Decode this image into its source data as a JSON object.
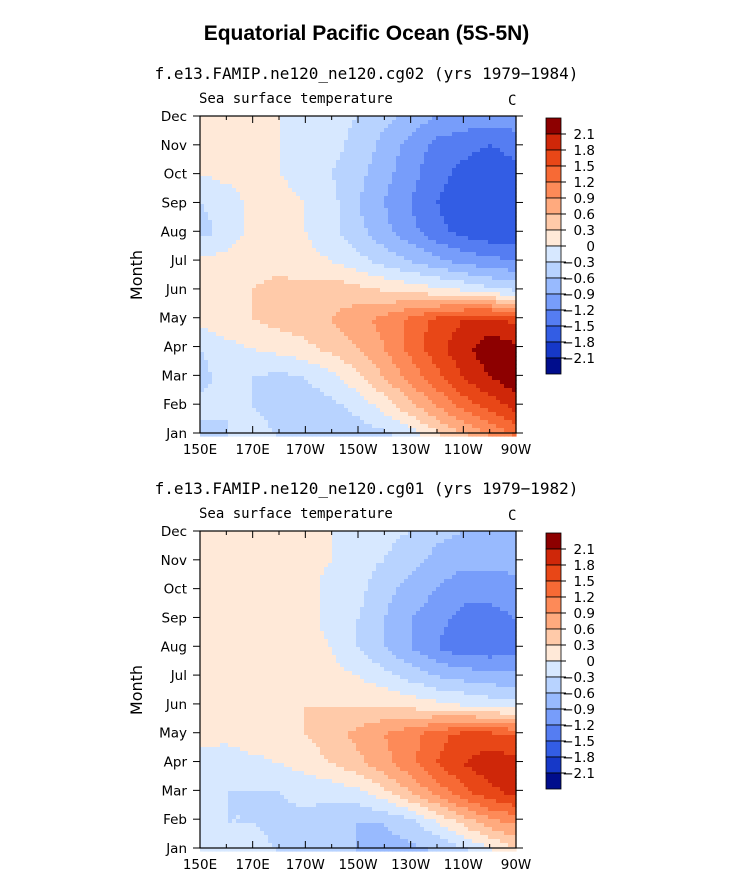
{
  "title": "Equatorial Pacific Ocean (5S-5N)",
  "chart_data": [
    {
      "type": "heatmap",
      "subtitle": "f.e13.FAMIP.ne120_ne120.cg02 (yrs 1979−1984)",
      "variable": "Sea surface temperature",
      "units": "C",
      "ylabel": "Month",
      "xticks": [
        "150E",
        "170E",
        "170W",
        "150W",
        "130W",
        "110W",
        "90W"
      ],
      "yticks": [
        "Jan",
        "Feb",
        "Mar",
        "Apr",
        "May",
        "Jun",
        "Jul",
        "Aug",
        "Sep",
        "Oct",
        "Nov",
        "Dec"
      ],
      "xlim_deg_east": [
        150,
        270
      ],
      "ylim_month": [
        1,
        12
      ],
      "colorbar_levels": [
        "2.1",
        "1.8",
        "1.5",
        "1.2",
        "0.9",
        "0.6",
        "0.3",
        "0",
        "−0.3",
        "−0.6",
        "−0.9",
        "−1.2",
        "−1.5",
        "−1.8",
        "−2.1"
      ],
      "grid_values": [
        [
          -0.4,
          -0.3,
          -0.2,
          -0.3,
          -0.4,
          -0.5,
          -0.5,
          -0.4,
          -0.2,
          0.2,
          0.5,
          0.9,
          1.2
        ],
        [
          -0.2,
          -0.3,
          -0.3,
          -0.4,
          -0.5,
          -0.4,
          -0.2,
          0.1,
          0.5,
          0.9,
          1.3,
          1.6,
          1.9
        ],
        [
          -0.4,
          -0.2,
          -0.3,
          -0.4,
          -0.3,
          -0.1,
          0.2,
          0.6,
          1.0,
          1.4,
          1.8,
          2.1,
          2.3
        ],
        [
          -0.3,
          -0.1,
          0.0,
          0.1,
          0.2,
          0.4,
          0.6,
          0.9,
          1.3,
          1.7,
          2.0,
          2.3,
          2.2
        ],
        [
          0.1,
          0.2,
          0.3,
          0.4,
          0.5,
          0.6,
          0.8,
          1.0,
          1.3,
          1.6,
          1.8,
          1.9,
          1.7
        ],
        [
          0.2,
          0.2,
          0.3,
          0.4,
          0.4,
          0.5,
          0.4,
          0.3,
          0.2,
          0.1,
          0.0,
          -0.2,
          -0.3
        ],
        [
          0.1,
          0.1,
          0.2,
          0.2,
          0.1,
          0.0,
          -0.2,
          -0.4,
          -0.6,
          -0.8,
          -1.0,
          -1.1,
          -1.2
        ],
        [
          -0.4,
          -0.2,
          0.1,
          0.1,
          0.0,
          -0.2,
          -0.5,
          -0.8,
          -1.1,
          -1.4,
          -1.6,
          -1.7,
          -1.7
        ],
        [
          -0.3,
          -0.2,
          0.1,
          0.1,
          0.0,
          -0.2,
          -0.6,
          -0.9,
          -1.2,
          -1.5,
          -1.7,
          -1.8,
          -1.8
        ],
        [
          0.0,
          0.1,
          0.1,
          0.0,
          -0.1,
          -0.3,
          -0.5,
          -0.8,
          -1.1,
          -1.4,
          -1.6,
          -1.7,
          -1.6
        ],
        [
          0.1,
          0.2,
          0.1,
          0.0,
          -0.1,
          -0.2,
          -0.4,
          -0.7,
          -1.0,
          -1.3,
          -1.4,
          -1.5,
          -1.4
        ],
        [
          0.1,
          0.2,
          0.1,
          0.0,
          -0.1,
          -0.2,
          -0.3,
          -0.5,
          -0.7,
          -0.9,
          -1.0,
          -1.0,
          -1.0
        ]
      ]
    },
    {
      "type": "heatmap",
      "subtitle": "f.e13.FAMIP.ne120_ne120.cg01 (yrs 1979−1982)",
      "variable": "Sea surface temperature",
      "units": "C",
      "ylabel": "Month",
      "xticks": [
        "150E",
        "170E",
        "170W",
        "150W",
        "130W",
        "110W",
        "90W"
      ],
      "yticks": [
        "Jan",
        "Feb",
        "Mar",
        "Apr",
        "May",
        "Jun",
        "Jul",
        "Aug",
        "Sep",
        "Oct",
        "Nov",
        "Dec"
      ],
      "xlim_deg_east": [
        150,
        270
      ],
      "ylim_month": [
        1,
        12
      ],
      "colorbar_levels": [
        "2.1",
        "1.8",
        "1.5",
        "1.2",
        "0.9",
        "0.6",
        "0.3",
        "0",
        "−0.3",
        "−0.6",
        "−0.9",
        "−1.2",
        "−1.5",
        "−1.8",
        "−2.1"
      ],
      "grid_values": [
        [
          -0.1,
          -0.2,
          -0.2,
          -0.3,
          -0.4,
          -0.5,
          -0.6,
          -0.7,
          -0.7,
          -0.6,
          -0.4,
          -0.1,
          0.2
        ],
        [
          -0.2,
          -0.3,
          -0.3,
          -0.4,
          -0.4,
          -0.5,
          -0.6,
          -0.6,
          -0.4,
          0.0,
          0.4,
          0.8,
          1.0
        ],
        [
          -0.2,
          -0.3,
          -0.3,
          -0.3,
          -0.2,
          -0.2,
          -0.1,
          0.2,
          0.6,
          1.0,
          1.4,
          1.7,
          1.9
        ],
        [
          -0.1,
          -0.2,
          -0.1,
          0.0,
          0.1,
          0.3,
          0.5,
          0.8,
          1.1,
          1.5,
          1.8,
          2.0,
          1.9
        ],
        [
          0.1,
          0.1,
          0.2,
          0.2,
          0.3,
          0.5,
          0.7,
          0.9,
          1.1,
          1.4,
          1.6,
          1.6,
          1.5
        ],
        [
          0.1,
          0.1,
          0.2,
          0.2,
          0.3,
          0.3,
          0.3,
          0.3,
          0.2,
          0.1,
          0.0,
          -0.1,
          -0.2
        ],
        [
          0.2,
          0.2,
          0.2,
          0.2,
          0.1,
          0.1,
          0.0,
          -0.2,
          -0.4,
          -0.6,
          -0.7,
          -0.8,
          -0.8
        ],
        [
          0.2,
          0.2,
          0.2,
          0.2,
          0.1,
          0.0,
          -0.3,
          -0.6,
          -0.9,
          -1.2,
          -1.4,
          -1.4,
          -1.3
        ],
        [
          0.2,
          0.2,
          0.2,
          0.2,
          0.1,
          -0.1,
          -0.3,
          -0.6,
          -0.9,
          -1.1,
          -1.3,
          -1.3,
          -1.2
        ],
        [
          0.2,
          0.2,
          0.2,
          0.2,
          0.1,
          -0.1,
          -0.2,
          -0.5,
          -0.7,
          -0.9,
          -1.1,
          -1.1,
          -1.0
        ],
        [
          0.1,
          0.2,
          0.2,
          0.2,
          0.1,
          0.0,
          -0.2,
          -0.3,
          -0.5,
          -0.7,
          -0.8,
          -0.8,
          -0.8
        ],
        [
          0.1,
          0.2,
          0.2,
          0.2,
          0.1,
          0.0,
          -0.1,
          -0.2,
          -0.3,
          -0.5,
          -0.6,
          -0.6,
          -0.6
        ]
      ]
    }
  ],
  "colors": {
    "pos_ramp": [
      "#ffe9d8",
      "#ffcaa9",
      "#ffaa7e",
      "#fd8a58",
      "#f76a35",
      "#e84717",
      "#cf2709",
      "#8d0000"
    ],
    "neg_ramp": [
      "#d7e8ff",
      "#b8d3ff",
      "#98bafe",
      "#779dfa",
      "#557df2",
      "#335de4",
      "#1638c8",
      "#000d8c"
    ]
  }
}
